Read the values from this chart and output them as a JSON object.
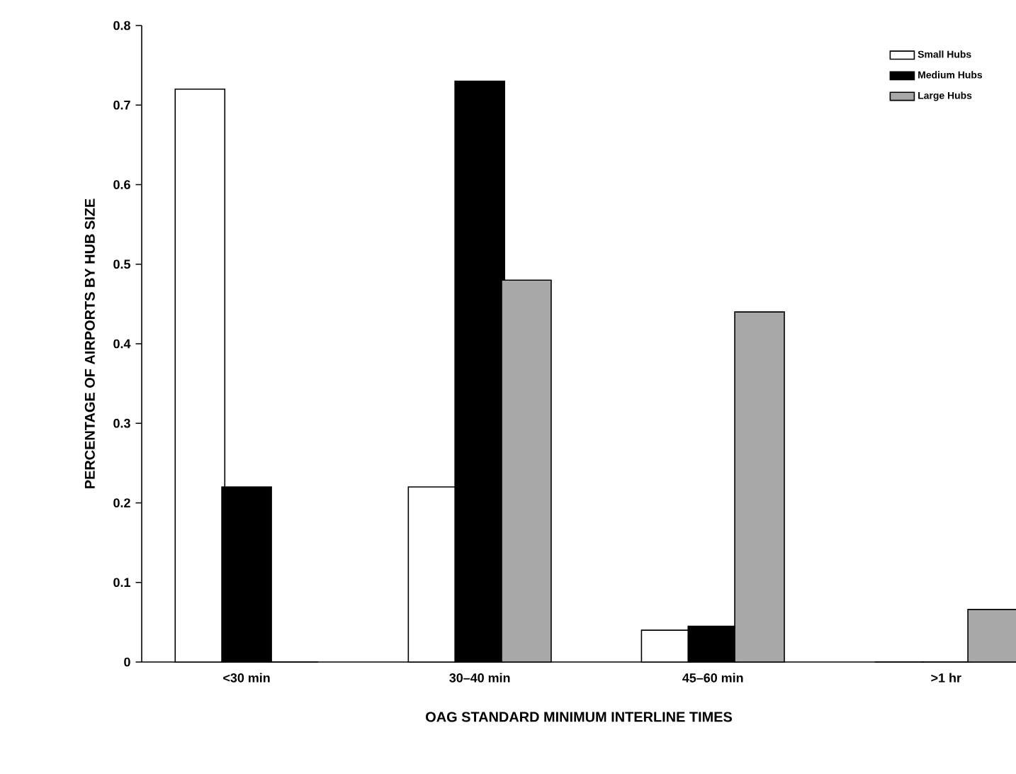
{
  "chart_data": {
    "type": "bar",
    "xlabel": "OAG STANDARD MINIMUM INTERLINE TIMES",
    "ylabel": "PERCENTAGE OF AIRPORTS  BY HUB SIZE",
    "categories": [
      "<30 min",
      "30–40 min",
      "45–60 min",
      ">1 hr"
    ],
    "series": [
      {
        "name": "Small Hubs",
        "color": "#ffffff",
        "values": [
          0.72,
          0.22,
          0.04,
          0
        ]
      },
      {
        "name": "Medium Hubs",
        "color": "#000000",
        "values": [
          0.22,
          0.73,
          0.045,
          0
        ]
      },
      {
        "name": "Large Hubs",
        "color": "#a8a8a8",
        "values": [
          0,
          0.48,
          0.44,
          0.066
        ]
      }
    ],
    "ylim": [
      0,
      0.8
    ],
    "yticks": [
      0,
      0.1,
      0.2,
      0.3,
      0.4,
      0.5,
      0.6,
      0.7,
      0.8
    ],
    "grid": false,
    "legend": "top right"
  }
}
